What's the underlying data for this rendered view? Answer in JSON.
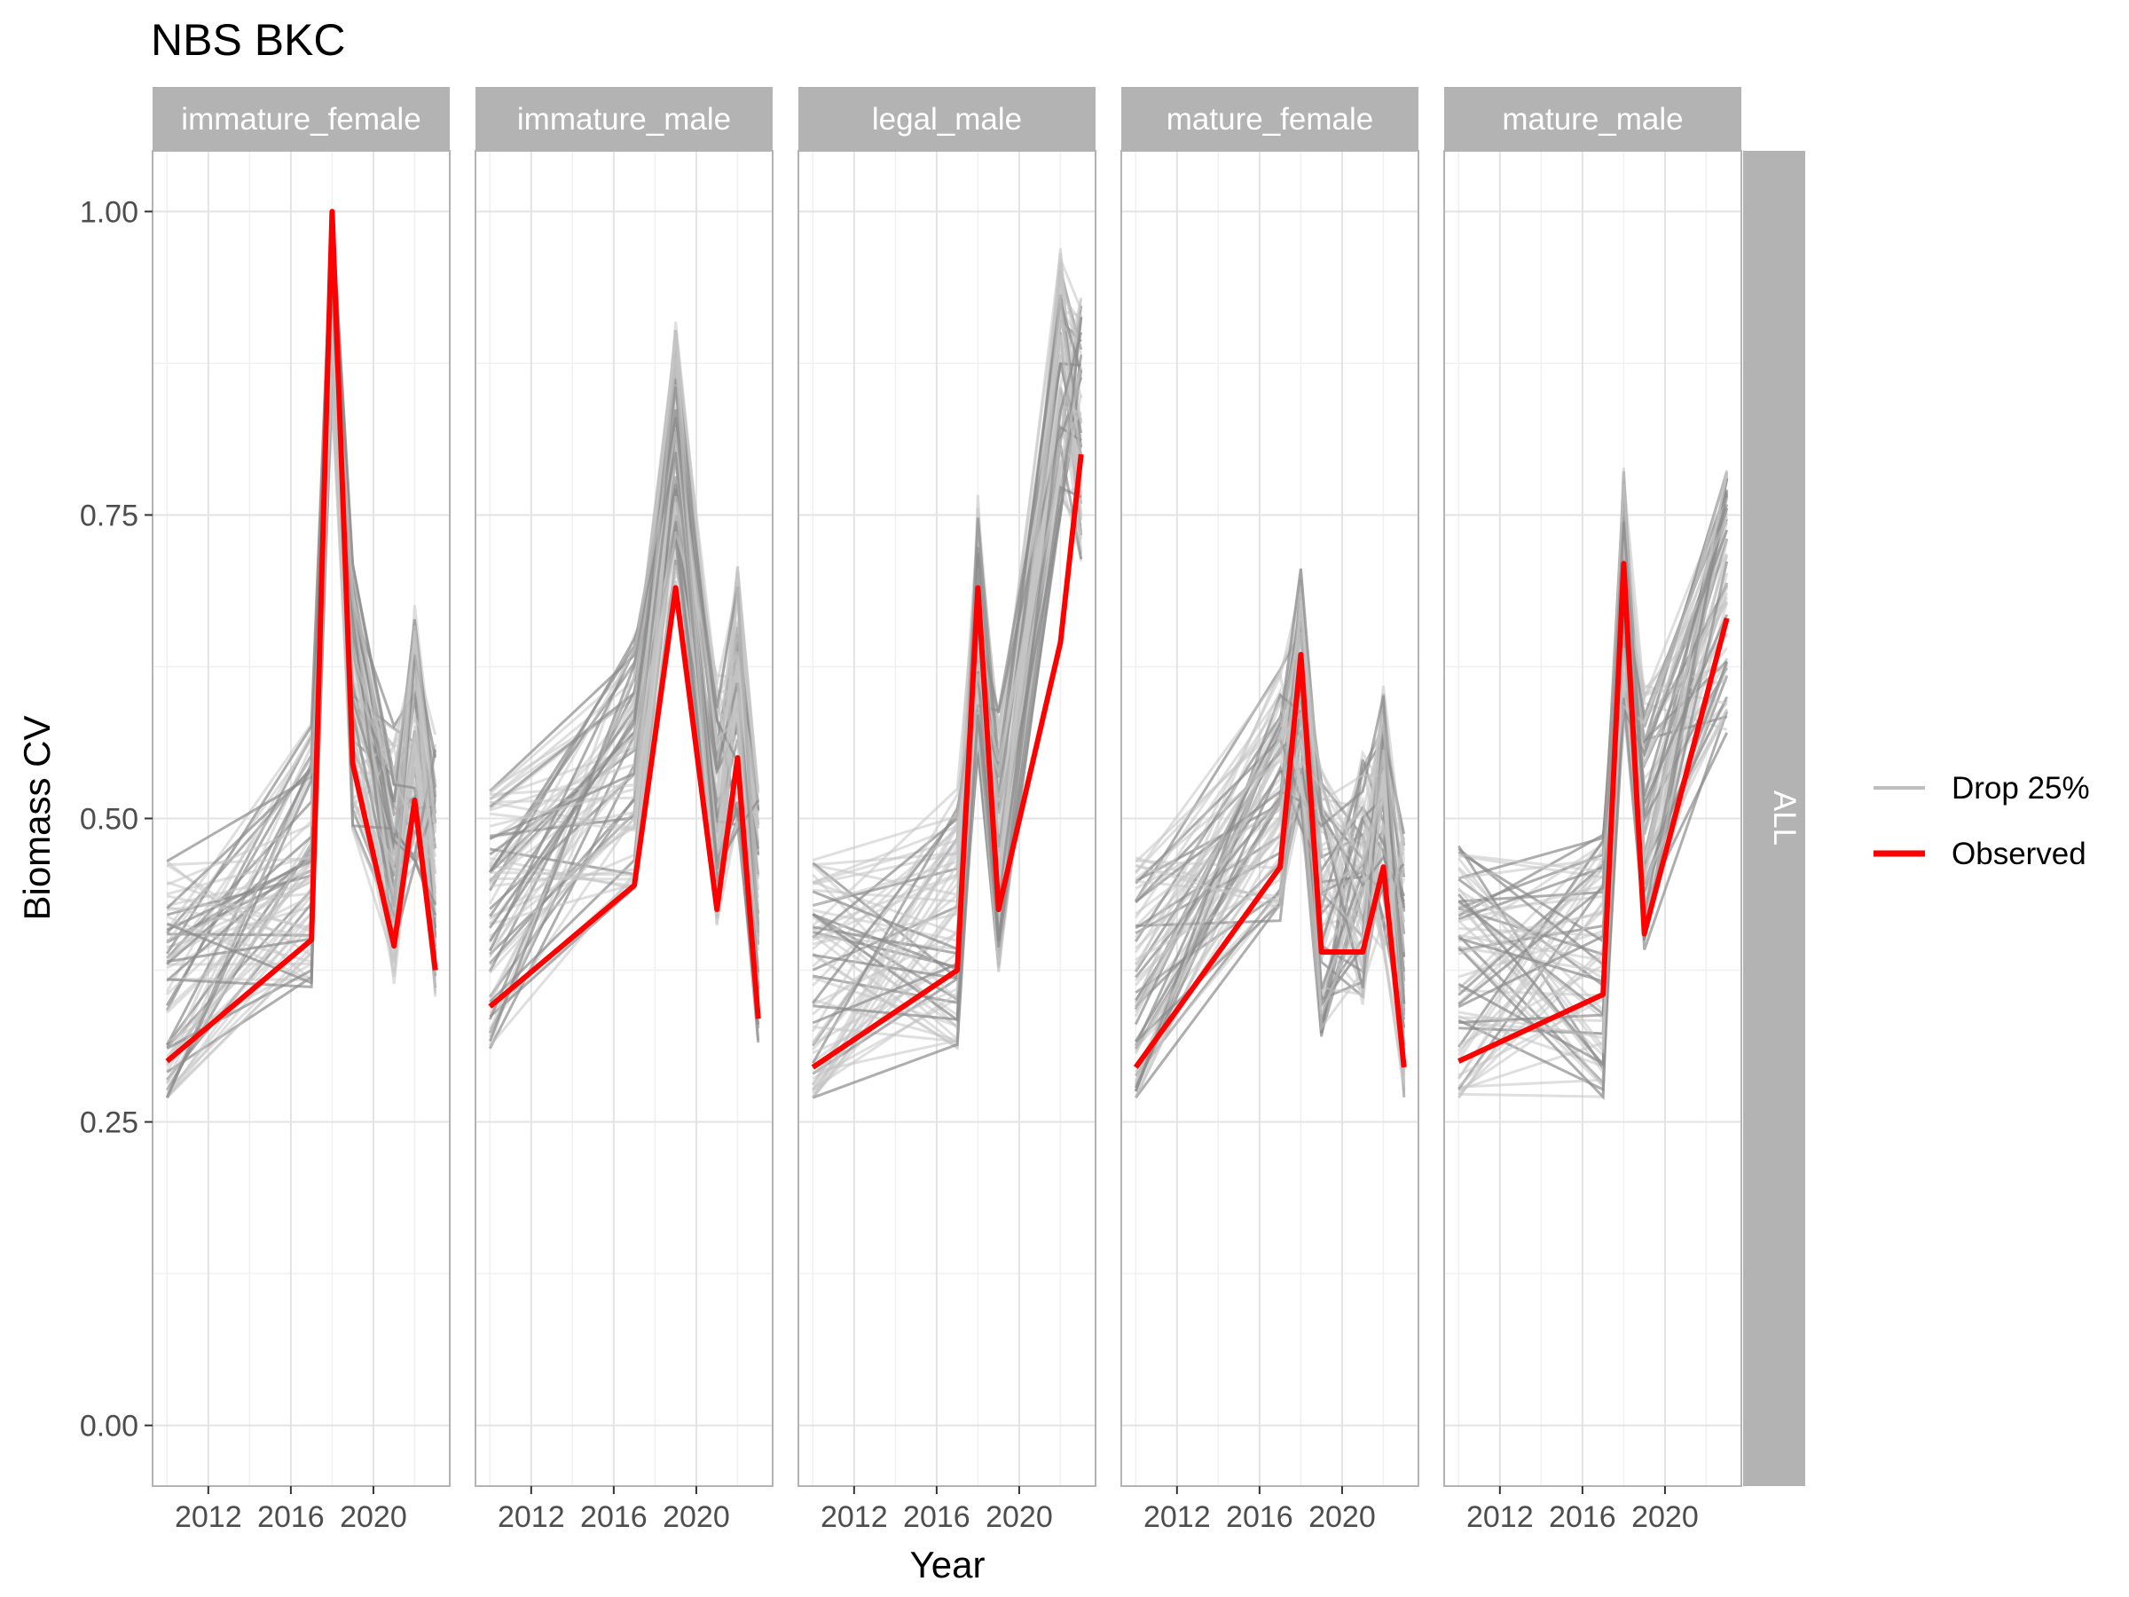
{
  "chart_data": {
    "type": "line",
    "title": "NBS BKC",
    "xlabel": "Year",
    "ylabel": "Biomass CV",
    "xlim": [
      2009.3,
      2023.7
    ],
    "ylim": [
      -0.05,
      1.05
    ],
    "x_ticks": [
      2012,
      2016,
      2020
    ],
    "x_tick_labels": [
      "2012",
      "2016",
      "2020"
    ],
    "y_ticks": [
      0,
      0.25,
      0.5,
      0.75,
      1
    ],
    "y_tick_labels": [
      "0.00",
      "0.25",
      "0.50",
      "0.75",
      "1.00"
    ],
    "row_strip": "ALL",
    "grid": true,
    "legend_position": "right",
    "legend": [
      {
        "label": "Drop 25%",
        "color": "#bfbfbf"
      },
      {
        "label": "Observed",
        "color": "#ff0000"
      }
    ],
    "panels": [
      {
        "name": "immature_female",
        "observed": {
          "x": [
            2010,
            2017,
            2018,
            2019,
            2021,
            2022,
            2023
          ],
          "y": [
            0.3,
            0.4,
            1.0,
            0.545,
            0.395,
            0.515,
            0.375
          ]
        },
        "drop_sample": {
          "x": [
            2010,
            2017,
            2018,
            2019,
            2021,
            2022,
            2023
          ],
          "y": [
            0.36,
            0.47,
            0.95,
            0.6,
            0.47,
            0.57,
            0.46
          ]
        }
      },
      {
        "name": "immature_male",
        "observed": {
          "x": [
            2010,
            2017,
            2019,
            2021,
            2022,
            2023
          ],
          "y": [
            0.345,
            0.445,
            0.69,
            0.425,
            0.55,
            0.335
          ]
        },
        "drop_sample": {
          "x": [
            2010,
            2017,
            2019,
            2021,
            2022,
            2023
          ],
          "y": [
            0.42,
            0.55,
            0.8,
            0.52,
            0.6,
            0.42
          ]
        }
      },
      {
        "name": "legal_male",
        "observed": {
          "x": [
            2010,
            2017,
            2018,
            2019,
            2022,
            2023
          ],
          "y": [
            0.295,
            0.375,
            0.69,
            0.425,
            0.645,
            0.8
          ]
        },
        "drop_sample": {
          "x": [
            2010,
            2017,
            2018,
            2019,
            2022,
            2023
          ],
          "y": [
            0.36,
            0.42,
            0.66,
            0.48,
            0.86,
            0.82
          ]
        }
      },
      {
        "name": "mature_female",
        "observed": {
          "x": [
            2010,
            2017,
            2018,
            2019,
            2021,
            2022,
            2023
          ],
          "y": [
            0.295,
            0.46,
            0.635,
            0.39,
            0.39,
            0.46,
            0.295
          ]
        },
        "drop_sample": {
          "x": [
            2010,
            2017,
            2018,
            2019,
            2021,
            2022,
            2023
          ],
          "y": [
            0.36,
            0.52,
            0.6,
            0.43,
            0.45,
            0.5,
            0.38
          ]
        }
      },
      {
        "name": "mature_male",
        "observed": {
          "x": [
            2010,
            2017,
            2018,
            2019,
            2023
          ],
          "y": [
            0.3,
            0.355,
            0.71,
            0.405,
            0.665
          ]
        },
        "drop_sample": {
          "x": [
            2010,
            2017,
            2018,
            2019,
            2023
          ],
          "y": [
            0.37,
            0.38,
            0.68,
            0.5,
            0.68
          ]
        }
      }
    ]
  }
}
